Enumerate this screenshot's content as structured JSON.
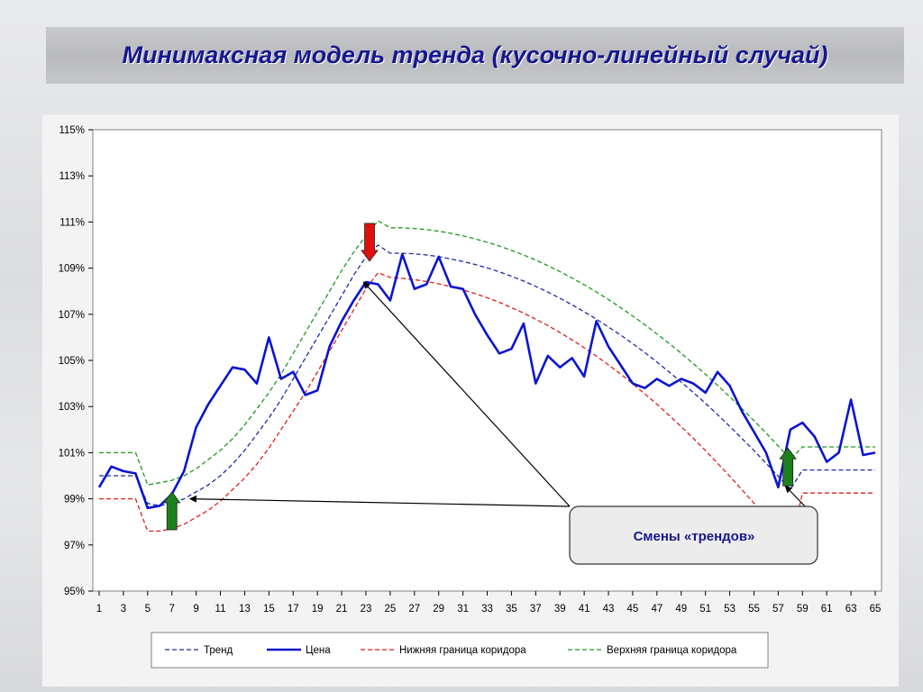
{
  "title": "Минимаксная модель тренда (кусочно-линейный случай)",
  "callout": {
    "text": "Смены «трендов»"
  },
  "chart_data": {
    "type": "line",
    "ylim": [
      95,
      115
    ],
    "yticks": [
      95,
      97,
      99,
      101,
      103,
      105,
      107,
      109,
      111,
      113,
      115
    ],
    "ytick_labels": [
      "95%",
      "97%",
      "99%",
      "101%",
      "103%",
      "105%",
      "107%",
      "109%",
      "111%",
      "113%",
      "115%"
    ],
    "xlim": [
      1,
      65
    ],
    "xticks": [
      1,
      3,
      5,
      7,
      9,
      11,
      13,
      15,
      17,
      19,
      21,
      23,
      25,
      27,
      29,
      31,
      33,
      35,
      37,
      39,
      41,
      43,
      45,
      47,
      49,
      51,
      53,
      55,
      57,
      59,
      61,
      63,
      65
    ],
    "xtick_labels": [
      "1",
      "3",
      "5",
      "7",
      "9",
      "11",
      "13",
      "15",
      "17",
      "19",
      "21",
      "23",
      "25",
      "27",
      "29",
      "31",
      "33",
      "35",
      "37",
      "39",
      "41",
      "43",
      "45",
      "47",
      "49",
      "51",
      "53",
      "55",
      "57",
      "59",
      "61",
      "63",
      "65"
    ],
    "grid": false,
    "legend_position": "bottom",
    "series": [
      {
        "name": "Тренд",
        "color": "#1f2aa8",
        "style": "dashed",
        "x": [
          1,
          2,
          3,
          4,
          5,
          6,
          7,
          8,
          9,
          10,
          11,
          12,
          13,
          14,
          15,
          16,
          17,
          18,
          19,
          20,
          21,
          22,
          23,
          24,
          25,
          26,
          27,
          28,
          29,
          30,
          31,
          32,
          33,
          34,
          35,
          36,
          37,
          38,
          39,
          40,
          41,
          42,
          43,
          44,
          45,
          46,
          47,
          48,
          49,
          50,
          51,
          52,
          53,
          54,
          55,
          56,
          57,
          58,
          59,
          60,
          61,
          62,
          63,
          64,
          65
        ],
        "values": [
          100.0,
          100.0,
          100.0,
          100.0,
          98.8,
          98.7,
          98.8,
          99.0,
          99.3,
          99.6,
          100.0,
          100.5,
          101.1,
          101.8,
          102.5,
          103.3,
          104.2,
          105.1,
          106.0,
          106.9,
          107.8,
          108.7,
          109.5,
          110.0,
          109.65,
          109.65,
          109.62,
          109.57,
          109.5,
          109.4,
          109.29,
          109.16,
          109.01,
          108.84,
          108.65,
          108.44,
          108.21,
          107.96,
          107.7,
          107.41,
          107.11,
          106.79,
          106.45,
          106.1,
          105.73,
          105.34,
          104.93,
          104.5,
          104.06,
          103.61,
          103.14,
          102.65,
          102.14,
          101.62,
          101.09,
          100.54,
          99.98,
          99.4,
          100.25,
          100.25,
          100.25,
          100.25,
          100.25,
          100.25,
          100.25
        ]
      },
      {
        "name": "Цена",
        "color": "#0a14d0",
        "style": "solid",
        "x": [
          1,
          2,
          3,
          4,
          5,
          6,
          7,
          8,
          9,
          10,
          11,
          12,
          13,
          14,
          15,
          16,
          17,
          18,
          19,
          20,
          21,
          22,
          23,
          24,
          25,
          26,
          27,
          28,
          29,
          30,
          31,
          32,
          33,
          34,
          35,
          36,
          37,
          38,
          39,
          40,
          41,
          42,
          43,
          44,
          45,
          46,
          47,
          48,
          49,
          50,
          51,
          52,
          53,
          54,
          55,
          56,
          57,
          58,
          59,
          60,
          61,
          62,
          63,
          64,
          65
        ],
        "values": [
          99.5,
          100.4,
          100.2,
          100.1,
          98.6,
          98.7,
          99.2,
          100.2,
          102.1,
          103.1,
          103.9,
          104.7,
          104.6,
          104.0,
          106.0,
          104.2,
          104.5,
          103.5,
          103.7,
          105.6,
          106.7,
          107.6,
          108.4,
          108.3,
          107.6,
          109.6,
          108.1,
          108.3,
          109.5,
          108.2,
          108.1,
          107.0,
          106.1,
          105.3,
          105.5,
          106.6,
          104.0,
          105.2,
          104.7,
          105.1,
          104.3,
          106.7,
          105.6,
          104.8,
          104.0,
          103.8,
          104.2,
          103.9,
          104.2,
          104.0,
          103.6,
          104.5,
          103.9,
          102.8,
          101.9,
          101.0,
          99.5,
          102.0,
          102.3,
          101.7,
          100.6,
          101.0,
          103.3,
          100.9,
          101.0
        ]
      },
      {
        "name": "Нижняя граница коридора",
        "color": "#e01e1e",
        "style": "dashed",
        "x": [
          1,
          2,
          3,
          4,
          5,
          6,
          7,
          8,
          9,
          10,
          11,
          12,
          13,
          14,
          15,
          16,
          17,
          18,
          19,
          20,
          21,
          22,
          23,
          24,
          25,
          26,
          27,
          28,
          29,
          30,
          31,
          32,
          33,
          34,
          35,
          36,
          37,
          38,
          39,
          40,
          41,
          42,
          43,
          44,
          45,
          46,
          47,
          48,
          49,
          50,
          51,
          52,
          53,
          54,
          55,
          56,
          57,
          58,
          59,
          60,
          61,
          62,
          63,
          64,
          65
        ],
        "values": [
          99.0,
          99.0,
          99.0,
          99.0,
          97.6,
          97.6,
          97.7,
          97.9,
          98.2,
          98.5,
          98.9,
          99.4,
          99.9,
          100.5,
          101.2,
          102.0,
          102.8,
          103.6,
          104.5,
          105.4,
          106.3,
          107.2,
          108.1,
          108.8,
          108.6,
          108.56,
          108.5,
          108.42,
          108.32,
          108.2,
          108.06,
          107.9,
          107.72,
          107.52,
          107.29,
          107.05,
          106.79,
          106.51,
          106.21,
          105.89,
          105.55,
          105.19,
          104.81,
          104.41,
          103.99,
          103.55,
          103.1,
          102.62,
          102.13,
          101.62,
          101.09,
          100.54,
          99.98,
          99.4,
          98.81,
          98.2,
          97.57,
          96.93,
          99.25,
          99.25,
          99.25,
          99.25,
          99.25,
          99.25,
          99.25
        ]
      },
      {
        "name": "Верхняя граница коридора",
        "color": "#1e9a1e",
        "style": "dashed",
        "x": [
          1,
          2,
          3,
          4,
          5,
          6,
          7,
          8,
          9,
          10,
          11,
          12,
          13,
          14,
          15,
          16,
          17,
          18,
          19,
          20,
          21,
          22,
          23,
          24,
          25,
          26,
          27,
          28,
          29,
          30,
          31,
          32,
          33,
          34,
          35,
          36,
          37,
          38,
          39,
          40,
          41,
          42,
          43,
          44,
          45,
          46,
          47,
          48,
          49,
          50,
          51,
          52,
          53,
          54,
          55,
          56,
          57,
          58,
          59,
          60,
          61,
          62,
          63,
          64,
          65
        ],
        "values": [
          101.0,
          101.0,
          101.0,
          101.0,
          99.6,
          99.7,
          99.8,
          100.0,
          100.3,
          100.7,
          101.1,
          101.6,
          102.2,
          102.9,
          103.6,
          104.4,
          105.3,
          106.2,
          107.1,
          108.0,
          108.9,
          109.7,
          110.4,
          111.05,
          110.75,
          110.75,
          110.72,
          110.67,
          110.6,
          110.51,
          110.4,
          110.27,
          110.12,
          109.96,
          109.77,
          109.57,
          109.35,
          109.11,
          108.85,
          108.57,
          108.28,
          107.97,
          107.64,
          107.29,
          106.93,
          106.55,
          106.15,
          105.74,
          105.31,
          104.86,
          104.4,
          103.92,
          103.42,
          102.91,
          102.39,
          101.85,
          101.29,
          100.72,
          101.25,
          101.25,
          101.25,
          101.25,
          101.25,
          101.25,
          101.25
        ]
      }
    ],
    "markers": [
      {
        "type": "arrow-up",
        "x": 7,
        "y": 99.3,
        "color": "#1d7f1d"
      },
      {
        "type": "arrow-down",
        "x": 23.3,
        "y": 109.3,
        "color": "#e01010"
      },
      {
        "type": "arrow-up",
        "x": 57.8,
        "y": 101.2,
        "color": "#1d7f1d"
      }
    ],
    "pointers": [
      {
        "x": 8.5,
        "y": 99.0
      },
      {
        "x": 22.8,
        "y": 108.4
      },
      {
        "x": 57.6,
        "y": 99.55
      }
    ]
  }
}
